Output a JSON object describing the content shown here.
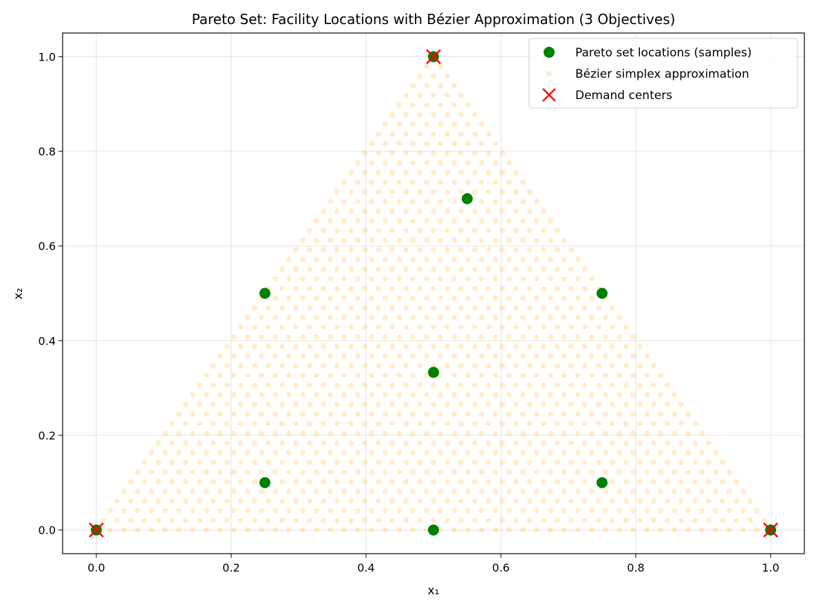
{
  "chart_data": {
    "type": "scatter",
    "title": "Pareto Set: Facility Locations with Bézier Approximation (3 Objectives)",
    "xlabel": "x₁",
    "ylabel": "x₂",
    "xlim": [
      -0.05,
      1.05
    ],
    "ylim": [
      -0.05,
      1.05
    ],
    "xticks": [
      0.0,
      0.2,
      0.4,
      0.6,
      0.8,
      1.0
    ],
    "yticks": [
      0.0,
      0.2,
      0.4,
      0.6,
      0.8,
      1.0
    ],
    "xtick_labels": [
      "0.0",
      "0.2",
      "0.4",
      "0.6",
      "0.8",
      "1.0"
    ],
    "ytick_labels": [
      "0.0",
      "0.2",
      "0.4",
      "0.6",
      "0.8",
      "1.0"
    ],
    "grid": true,
    "legend_position": "top-right",
    "series": [
      {
        "name": "Pareto set locations (samples)",
        "color": "#008000",
        "marker": "circle",
        "points": [
          [
            0,
            0
          ],
          [
            1,
            0
          ],
          [
            0.5,
            1
          ],
          [
            0.25,
            0.1
          ],
          [
            0.75,
            0.1
          ],
          [
            0.25,
            0.5
          ],
          [
            0.75,
            0.5
          ],
          [
            0.5,
            0
          ],
          [
            0.5,
            0.333
          ],
          [
            0.55,
            0.7
          ]
        ]
      },
      {
        "name": "Bézier simplex approximation",
        "color": "#ffa500",
        "opacity": 0.2,
        "marker": "circle",
        "grid_divisions": 49,
        "vertices": [
          [
            0,
            0
          ],
          [
            1,
            0
          ],
          [
            0.5,
            1
          ]
        ]
      },
      {
        "name": "Demand centers",
        "color": "#ff0000",
        "marker": "x",
        "points": [
          [
            0,
            0
          ],
          [
            1,
            0
          ],
          [
            0.5,
            1
          ]
        ]
      }
    ]
  }
}
